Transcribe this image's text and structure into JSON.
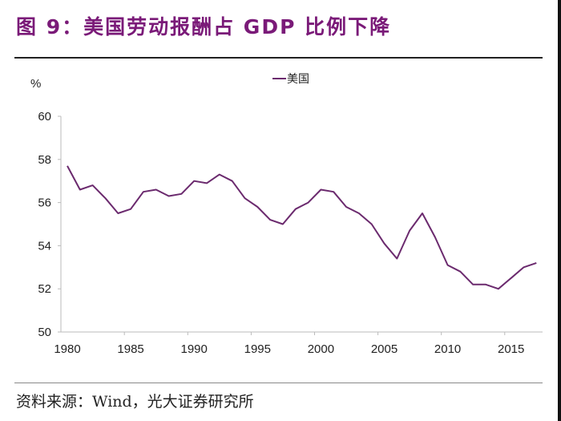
{
  "header": {
    "title": "图 9：美国劳动报酬占 GDP 比例下降"
  },
  "footer": {
    "source": "资料来源：Wind，光大证券研究所"
  },
  "colors": {
    "title": "#7a1a78",
    "series_line": "#6b2a6e",
    "axis": "#bbbbbb"
  },
  "chart_data": {
    "type": "line",
    "title": "美国劳动报酬占 GDP 比例下降",
    "xlabel": "",
    "ylabel": "%",
    "ylim": [
      50,
      60
    ],
    "yticks": [
      50,
      52,
      54,
      56,
      58,
      60
    ],
    "xtick_labels": [
      "1980",
      "1985",
      "1990",
      "1995",
      "2000",
      "2005",
      "2010",
      "2015"
    ],
    "grid": false,
    "legend": {
      "position": "top-center",
      "entries": [
        "美国"
      ]
    },
    "x": [
      1980,
      1981,
      1982,
      1983,
      1984,
      1985,
      1986,
      1987,
      1988,
      1989,
      1990,
      1991,
      1992,
      1993,
      1994,
      1995,
      1996,
      1997,
      1998,
      1999,
      2000,
      2001,
      2002,
      2003,
      2004,
      2005,
      2006,
      2007,
      2008,
      2009,
      2010,
      2011,
      2012,
      2013,
      2014,
      2015,
      2016,
      2017
    ],
    "series": [
      {
        "name": "美国",
        "values": [
          57.7,
          56.6,
          56.8,
          56.2,
          55.5,
          55.7,
          56.5,
          56.6,
          56.3,
          56.4,
          57.0,
          56.9,
          57.3,
          57.0,
          56.2,
          55.8,
          55.2,
          55.0,
          55.7,
          56.0,
          56.6,
          56.5,
          55.8,
          55.5,
          55.0,
          54.1,
          53.4,
          54.7,
          55.5,
          54.4,
          53.1,
          52.8,
          52.2,
          52.2,
          52.0,
          52.5,
          53.0,
          53.2
        ]
      }
    ]
  }
}
